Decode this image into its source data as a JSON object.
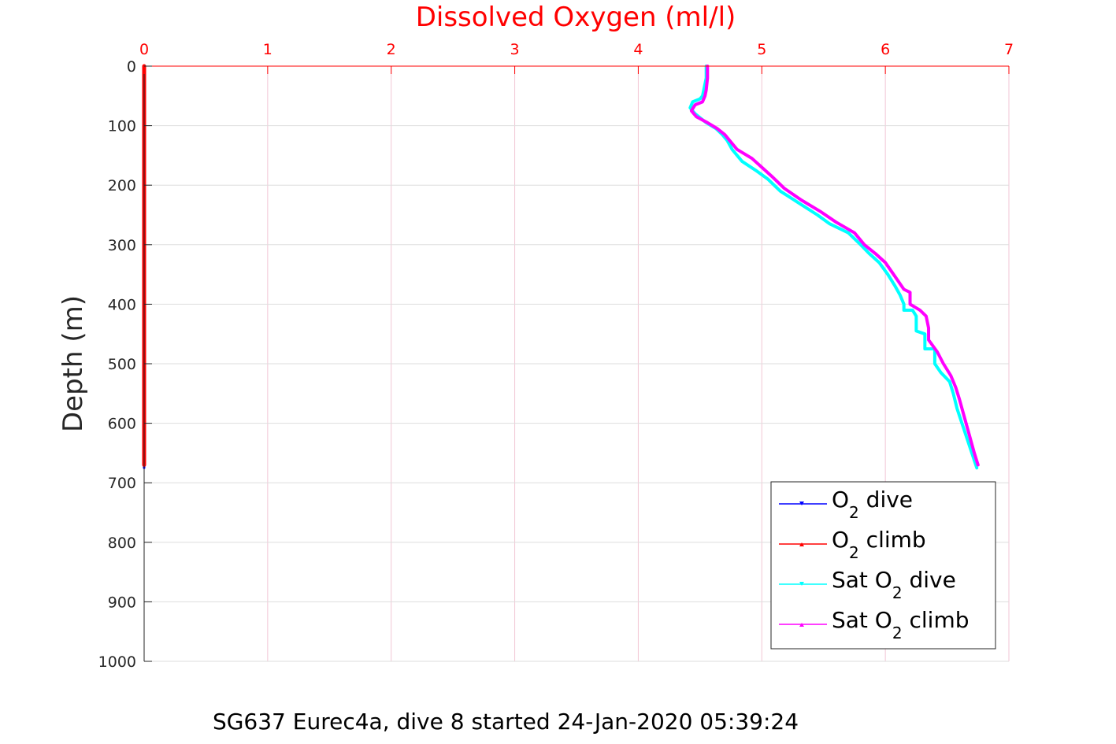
{
  "chart_data": {
    "type": "line",
    "title": "Dissolved Oxygen (ml/l)",
    "ylabel": "Depth (m)",
    "caption": "SG637 Eurec4a, dive 8 started 24-Jan-2020 05:39:24",
    "xlim": [
      0,
      7
    ],
    "ylim": [
      0,
      1000
    ],
    "y_reversed": true,
    "x_axis_position": "top",
    "xticks": [
      "0",
      "1",
      "2",
      "3",
      "4",
      "5",
      "6",
      "7"
    ],
    "yticks": [
      "0",
      "100",
      "200",
      "300",
      "400",
      "500",
      "600",
      "700",
      "800",
      "900",
      "1000"
    ],
    "grid": true,
    "legend_position": "bottom-right",
    "legend": [
      {
        "prefix": "O",
        "sub": "2",
        "suffix": " dive"
      },
      {
        "prefix": "O",
        "sub": "2",
        "suffix": " climb"
      },
      {
        "prefix": "Sat O",
        "sub": "2",
        "suffix": " dive"
      },
      {
        "prefix": "Sat O",
        "sub": "2",
        "suffix": " climb"
      }
    ],
    "colors": {
      "title": "#ff0000",
      "xtick": "#ff0000",
      "axis_x": "#ff0000",
      "axis_y": "#262626",
      "grid": "#f2c6d4",
      "grid_y": "#dedede"
    },
    "series": [
      {
        "name": "O2 dive",
        "color": "#0000ff",
        "marker": "down-triangle",
        "x": [
          0,
          0
        ],
        "y": [
          0,
          675
        ]
      },
      {
        "name": "O2 climb",
        "color": "#ff0000",
        "marker": "up-triangle",
        "x": [
          0,
          0
        ],
        "y": [
          0,
          670
        ]
      },
      {
        "name": "Sat O2 dive",
        "color": "#00ffff",
        "marker": "down-triangle",
        "x": [
          4.55,
          4.55,
          4.53,
          4.52,
          4.5,
          4.44,
          4.42,
          4.46,
          4.55,
          4.63,
          4.68,
          4.72,
          4.76,
          4.84,
          4.95,
          5.05,
          5.15,
          5.3,
          5.45,
          5.55,
          5.7,
          5.8,
          5.87,
          5.95,
          6.02,
          6.08,
          6.12,
          6.15,
          6.15,
          6.22,
          6.25,
          6.25,
          6.32,
          6.32,
          6.4,
          6.4,
          6.45,
          6.52,
          6.55,
          6.58,
          6.62,
          6.66,
          6.7,
          6.74
        ],
        "y": [
          0,
          20,
          40,
          50,
          55,
          60,
          70,
          80,
          95,
          105,
          115,
          125,
          140,
          160,
          175,
          190,
          210,
          230,
          250,
          265,
          280,
          300,
          315,
          330,
          350,
          370,
          385,
          400,
          410,
          410,
          420,
          445,
          450,
          475,
          475,
          500,
          515,
          530,
          550,
          575,
          600,
          625,
          650,
          675
        ]
      },
      {
        "name": "Sat O2 climb",
        "color": "#ff00ff",
        "marker": "up-triangle",
        "x": [
          4.56,
          4.56,
          4.55,
          4.54,
          4.52,
          4.46,
          4.43,
          4.47,
          4.56,
          4.64,
          4.7,
          4.74,
          4.8,
          4.92,
          5.0,
          5.08,
          5.18,
          5.32,
          5.48,
          5.6,
          5.75,
          5.83,
          5.92,
          6.0,
          6.05,
          6.1,
          6.15,
          6.2,
          6.2,
          6.28,
          6.33,
          6.35,
          6.35,
          6.42,
          6.47,
          6.53,
          6.57,
          6.6,
          6.64,
          6.68,
          6.72,
          6.75
        ],
        "y": [
          0,
          20,
          40,
          50,
          60,
          65,
          75,
          85,
          95,
          105,
          115,
          125,
          140,
          155,
          170,
          185,
          205,
          225,
          245,
          262,
          280,
          300,
          315,
          330,
          345,
          360,
          375,
          380,
          400,
          410,
          420,
          440,
          460,
          480,
          500,
          520,
          540,
          560,
          590,
          620,
          650,
          670
        ]
      }
    ]
  }
}
